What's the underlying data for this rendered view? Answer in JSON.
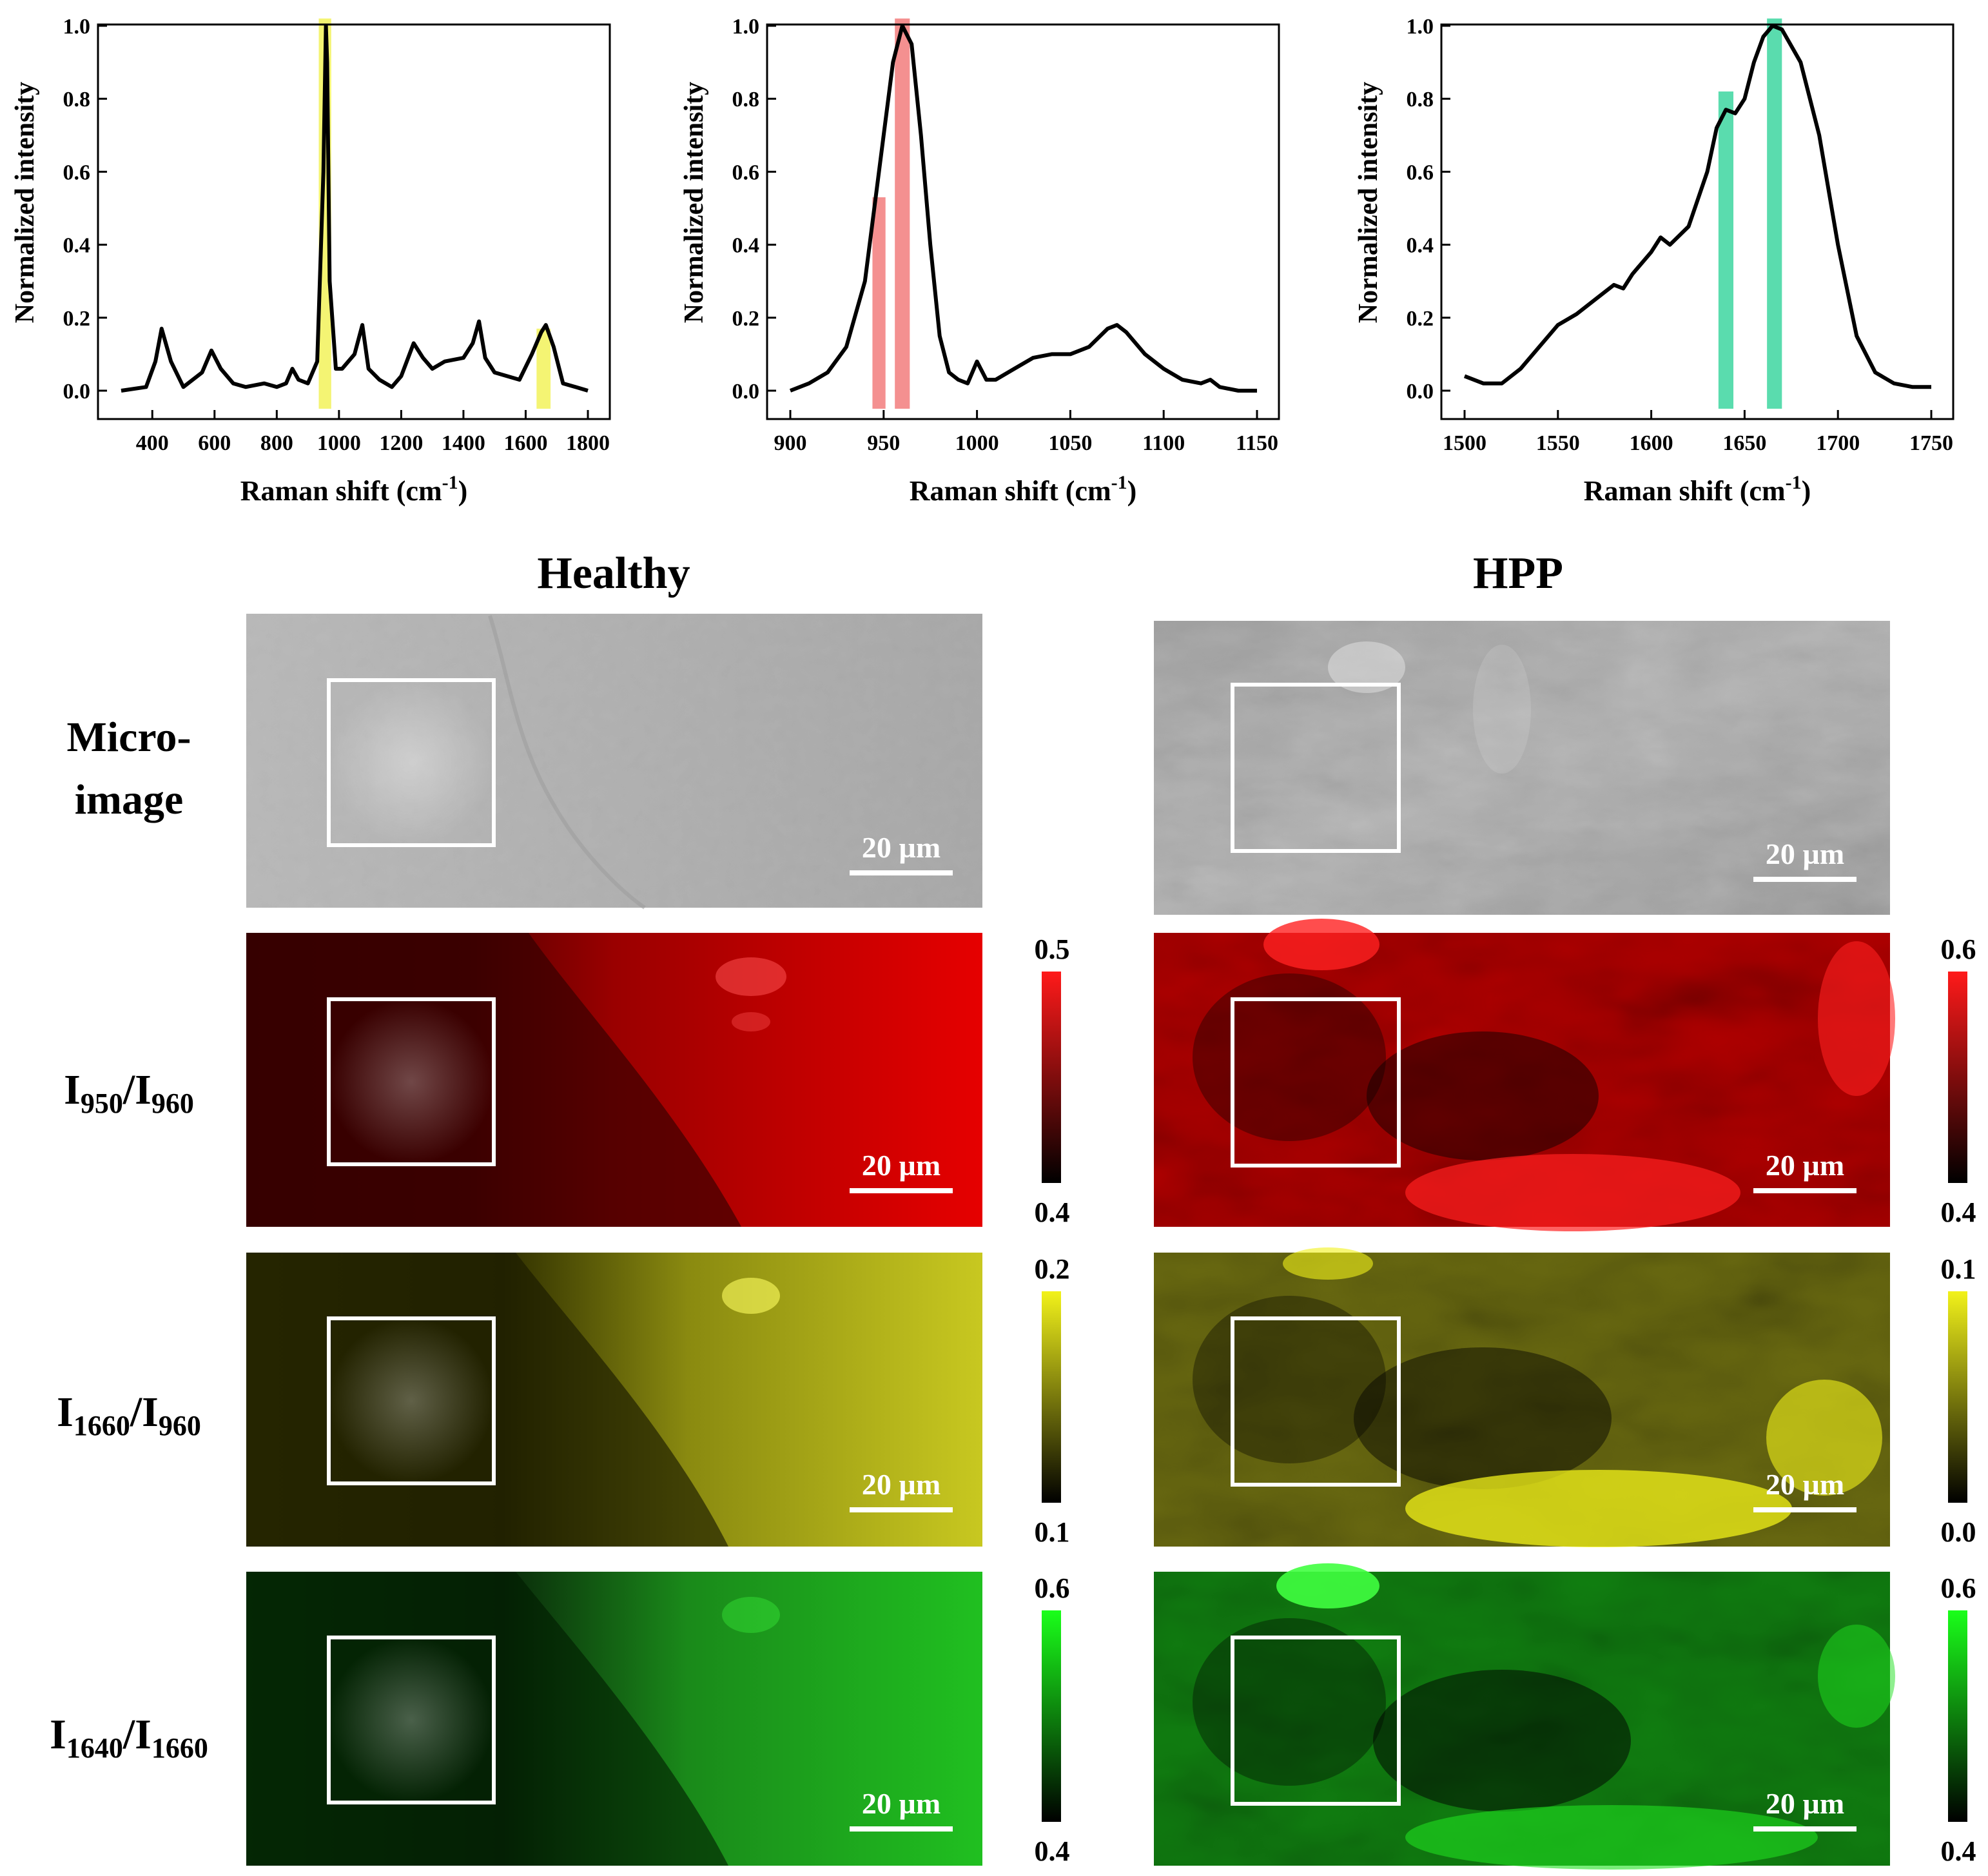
{
  "chart_data": [
    {
      "type": "line",
      "xlabel": "Raman shift (cm-1)",
      "ylabel": "Normalized intensity",
      "xlim": [
        300,
        1800
      ],
      "ylim": [
        0,
        1.0
      ],
      "xticks": [
        400,
        600,
        800,
        1000,
        1200,
        1400,
        1600,
        1800
      ],
      "yticks": [
        0.0,
        0.2,
        0.4,
        0.6,
        0.8,
        1.0
      ],
      "highlights": [
        {
          "x0": 935,
          "x1": 975,
          "ymax": 1.02,
          "color": "#f2f25a"
        },
        {
          "x0": 1635,
          "x1": 1680,
          "ymax": 0.17,
          "color": "#f2f25a"
        }
      ],
      "series": [
        {
          "x": [
            300,
            380,
            410,
            430,
            460,
            500,
            560,
            590,
            620,
            660,
            700,
            760,
            800,
            830,
            850,
            870,
            900,
            930,
            950,
            958,
            962,
            970,
            990,
            1010,
            1050,
            1075,
            1095,
            1130,
            1170,
            1200,
            1240,
            1270,
            1300,
            1340,
            1400,
            1430,
            1450,
            1470,
            1500,
            1540,
            1580,
            1620,
            1650,
            1665,
            1690,
            1720,
            1760,
            1800
          ],
          "y": [
            0.0,
            0.01,
            0.08,
            0.17,
            0.08,
            0.01,
            0.05,
            0.11,
            0.06,
            0.02,
            0.01,
            0.02,
            0.01,
            0.02,
            0.06,
            0.03,
            0.02,
            0.08,
            0.6,
            1.0,
            0.9,
            0.3,
            0.06,
            0.06,
            0.1,
            0.18,
            0.06,
            0.03,
            0.01,
            0.04,
            0.13,
            0.09,
            0.06,
            0.08,
            0.09,
            0.13,
            0.19,
            0.09,
            0.05,
            0.04,
            0.03,
            0.1,
            0.16,
            0.18,
            0.12,
            0.02,
            0.01,
            0.0
          ]
        }
      ]
    },
    {
      "type": "line",
      "xlabel": "Raman shift (cm-1)",
      "ylabel": "Normalized intensity",
      "xlim": [
        900,
        1150
      ],
      "ylim": [
        0,
        1.0
      ],
      "xticks": [
        900,
        950,
        1000,
        1050,
        1100,
        1150
      ],
      "yticks": [
        0.0,
        0.2,
        0.4,
        0.6,
        0.8,
        1.0
      ],
      "highlights": [
        {
          "x0": 944,
          "x1": 951,
          "ymax": 0.53,
          "color": "#f27c7c"
        },
        {
          "x0": 956,
          "x1": 964,
          "ymax": 1.02,
          "color": "#f27c7c"
        }
      ],
      "series": [
        {
          "x": [
            900,
            910,
            920,
            930,
            940,
            950,
            955,
            960,
            965,
            970,
            975,
            980,
            985,
            990,
            995,
            1000,
            1005,
            1010,
            1020,
            1030,
            1040,
            1050,
            1060,
            1070,
            1075,
            1080,
            1090,
            1100,
            1110,
            1120,
            1125,
            1130,
            1140,
            1150
          ],
          "y": [
            0.0,
            0.02,
            0.05,
            0.12,
            0.3,
            0.7,
            0.9,
            1.0,
            0.95,
            0.7,
            0.4,
            0.15,
            0.05,
            0.03,
            0.02,
            0.08,
            0.03,
            0.03,
            0.06,
            0.09,
            0.1,
            0.1,
            0.12,
            0.17,
            0.18,
            0.16,
            0.1,
            0.06,
            0.03,
            0.02,
            0.03,
            0.01,
            0.0,
            0.0
          ]
        }
      ]
    },
    {
      "type": "line",
      "xlabel": "Raman shift (cm-1)",
      "ylabel": "Normalized intensity",
      "xlim": [
        1500,
        1750
      ],
      "ylim": [
        0,
        1.0
      ],
      "xticks": [
        1500,
        1550,
        1600,
        1650,
        1700,
        1750
      ],
      "yticks": [
        0.0,
        0.2,
        0.4,
        0.6,
        0.8,
        1.0
      ],
      "highlights": [
        {
          "x0": 1636,
          "x1": 1644,
          "ymax": 0.82,
          "color": "#3dd6a0"
        },
        {
          "x0": 1662,
          "x1": 1670,
          "ymax": 1.02,
          "color": "#3dd6a0"
        }
      ],
      "series": [
        {
          "x": [
            1500,
            1510,
            1520,
            1530,
            1540,
            1550,
            1560,
            1570,
            1580,
            1585,
            1590,
            1600,
            1605,
            1610,
            1620,
            1630,
            1635,
            1640,
            1645,
            1650,
            1655,
            1660,
            1665,
            1670,
            1680,
            1690,
            1700,
            1710,
            1720,
            1730,
            1740,
            1750
          ],
          "y": [
            0.04,
            0.02,
            0.02,
            0.06,
            0.12,
            0.18,
            0.21,
            0.25,
            0.29,
            0.28,
            0.32,
            0.38,
            0.42,
            0.4,
            0.45,
            0.6,
            0.72,
            0.77,
            0.76,
            0.8,
            0.9,
            0.97,
            1.0,
            0.99,
            0.9,
            0.7,
            0.4,
            0.15,
            0.05,
            0.02,
            0.01,
            0.01
          ]
        }
      ]
    },
    {
      "type": "heatmap",
      "column_titles": [
        "Healthy",
        "HPP"
      ],
      "row_labels": [
        {
          "main": "Micro-",
          "main2": "image",
          "sub": "",
          "main_b": "",
          "sub_b": ""
        },
        {
          "main": "I",
          "sub": "950",
          "main_b": "/I",
          "sub_b": "960"
        },
        {
          "main": "I",
          "sub": "1660",
          "main_b": "/I",
          "sub_b": "960"
        },
        {
          "main": "I",
          "sub": "1640",
          "main_b": "/I",
          "sub_b": "1660"
        }
      ],
      "scale_bar": "20 µm",
      "colorbars": [
        [
          {
            "max": "0.5",
            "min": "0.4",
            "color": "#ff1a1a"
          },
          {
            "max": "0.6",
            "min": "0.4",
            "color": "#ff1a1a"
          }
        ],
        [
          {
            "max": "0.2",
            "min": "0.1",
            "color": "#f2f21a"
          },
          {
            "max": "0.1",
            "min": "0.0",
            "color": "#f2f21a"
          }
        ],
        [
          {
            "max": "0.6",
            "min": "0.4",
            "color": "#1aff1a"
          },
          {
            "max": "0.6",
            "min": "0.4",
            "color": "#1aff1a"
          }
        ]
      ]
    }
  ]
}
